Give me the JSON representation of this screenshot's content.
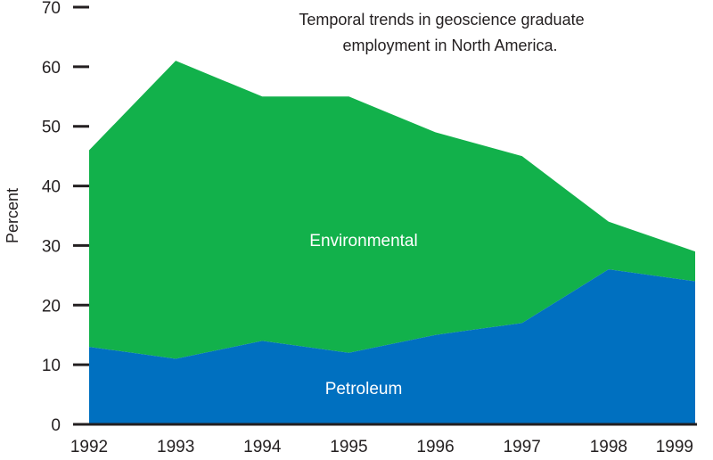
{
  "chart_data": {
    "type": "area",
    "stacked": true,
    "title_lines": [
      "Temporal trends in geoscience graduate",
      "employment in North America."
    ],
    "ylabel": "Percent",
    "xlabel": "",
    "ylim": [
      0,
      70
    ],
    "yticks": [
      0,
      10,
      20,
      30,
      40,
      50,
      60,
      70
    ],
    "x": [
      "1992",
      "1993",
      "1994",
      "1995",
      "1996",
      "1997",
      "1998",
      "1999"
    ],
    "grid": false,
    "series": [
      {
        "name": "Petroleum",
        "values": [
          13,
          11,
          14,
          12,
          15,
          17,
          26,
          24
        ],
        "color": "#0070c0"
      },
      {
        "name": "Environmental",
        "values": [
          46,
          61,
          55,
          55,
          49,
          45,
          34,
          29
        ],
        "color": "#12b14b"
      }
    ]
  }
}
